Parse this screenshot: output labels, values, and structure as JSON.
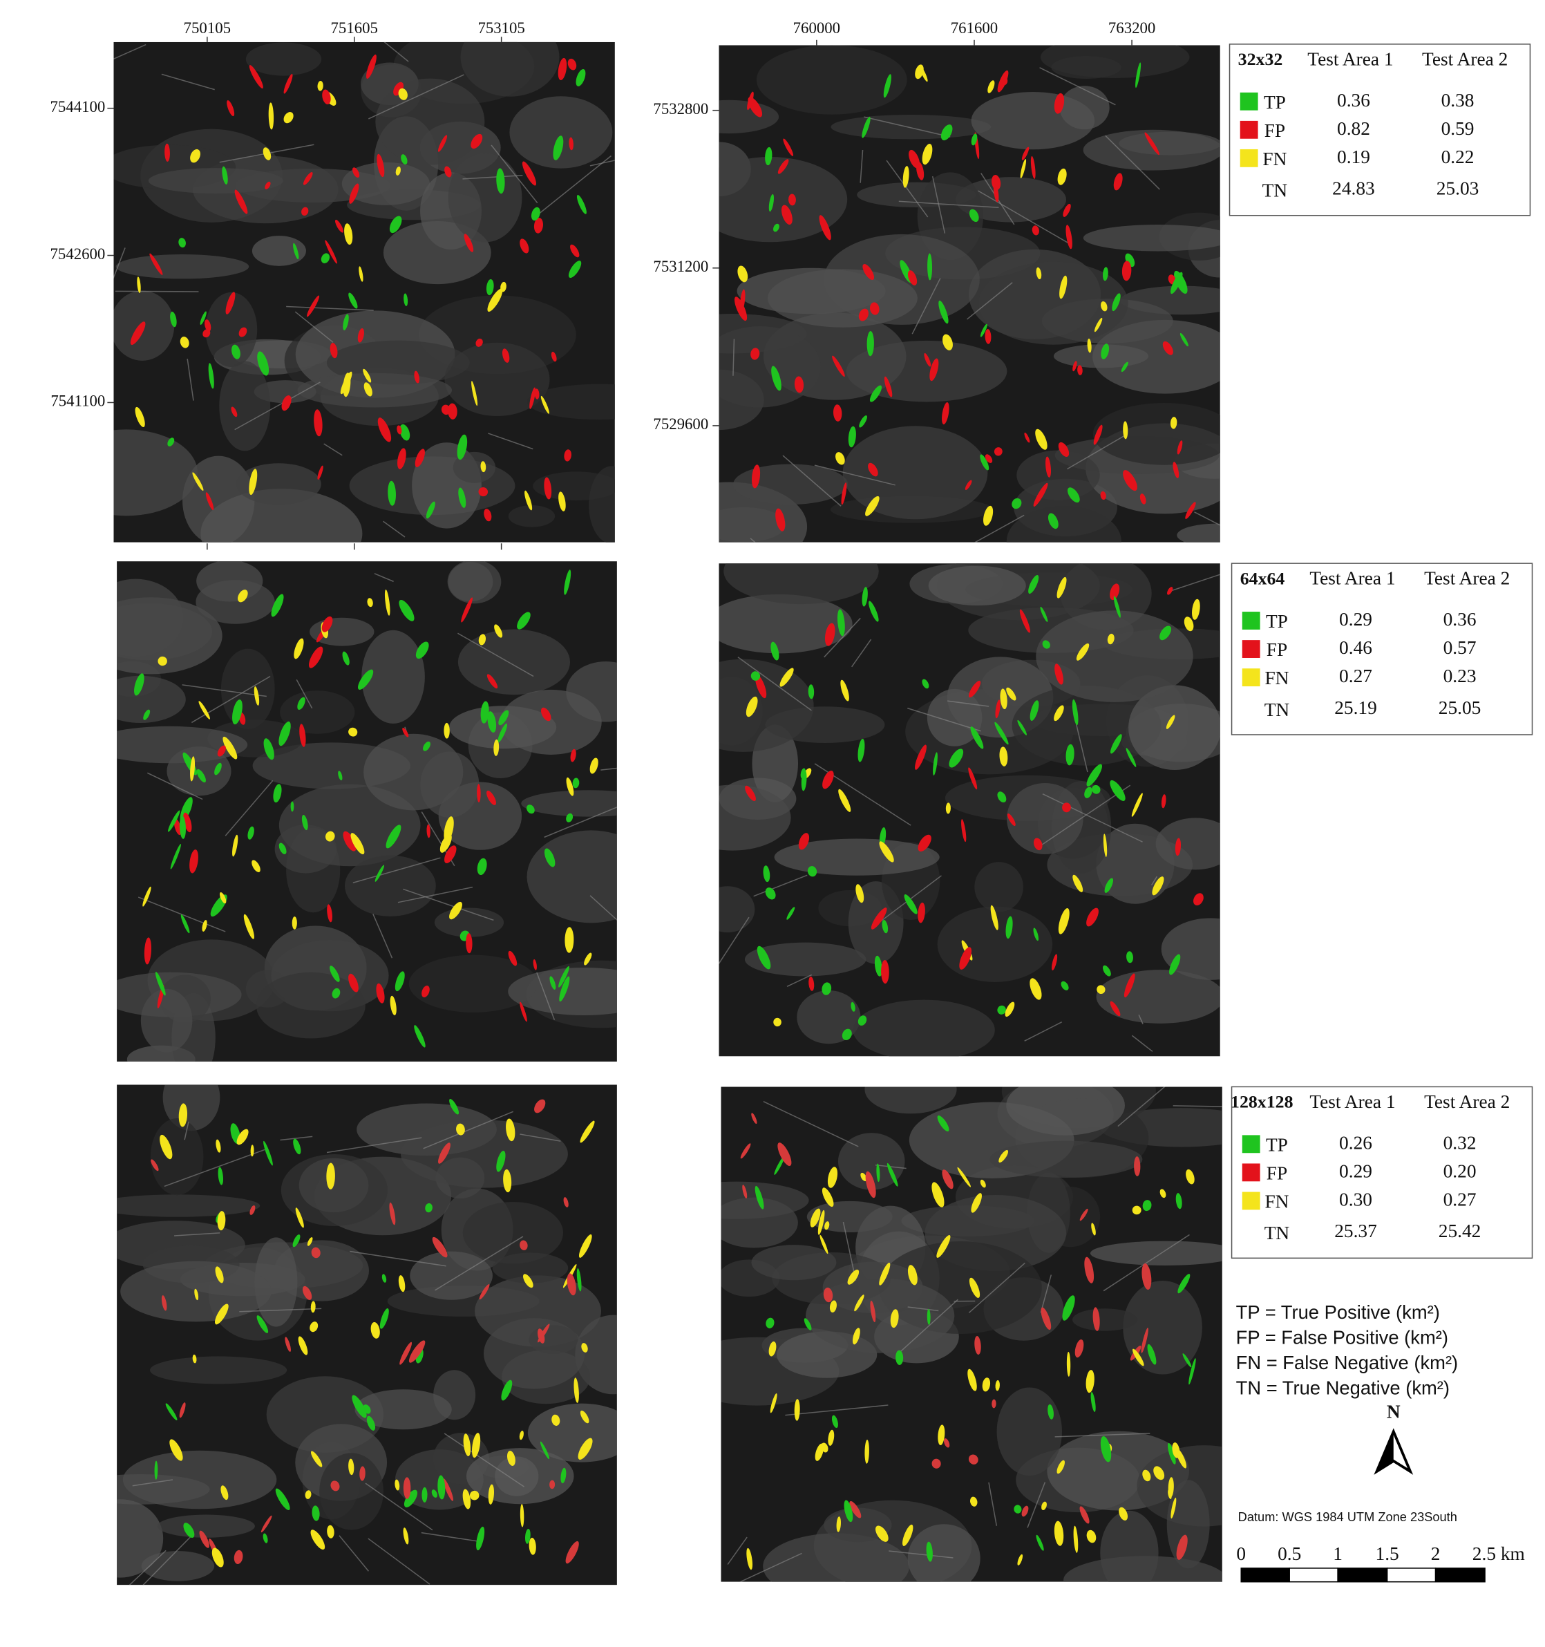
{
  "maps": [
    {
      "x_ticks": [
        750105,
        751605,
        753105
      ],
      "y_ticks": [
        7544100,
        7542600,
        7541100
      ]
    },
    {
      "x_ticks": [
        760000,
        761600,
        763200
      ],
      "y_ticks": [
        7532800,
        7531200,
        7529600
      ]
    }
  ],
  "tables": [
    {
      "title": "32x32",
      "columns": [
        "Test Area 1",
        "Test Area 2"
      ],
      "rows": [
        {
          "label": "TP",
          "color": "#1fc41f",
          "values": [
            "0.36",
            "0.38"
          ]
        },
        {
          "label": "FP",
          "color": "#e3121b",
          "values": [
            "0.82",
            "0.59"
          ]
        },
        {
          "label": "FN",
          "color": "#f4e41c",
          "values": [
            "0.19",
            "0.22"
          ]
        },
        {
          "label": "TN",
          "values": [
            "24.83",
            "25.03"
          ]
        }
      ]
    },
    {
      "title": "64x64",
      "columns": [
        "Test Area 1",
        "Test Area 2"
      ],
      "rows": [
        {
          "label": "TP",
          "color": "#1fc41f",
          "values": [
            "0.29",
            "0.36"
          ]
        },
        {
          "label": "FP",
          "color": "#e3121b",
          "values": [
            "0.46",
            "0.57"
          ]
        },
        {
          "label": "FN",
          "color": "#f4e41c",
          "values": [
            "0.27",
            "0.23"
          ]
        },
        {
          "label": "TN",
          "values": [
            "25.19",
            "25.05"
          ]
        }
      ]
    },
    {
      "title": "128x128",
      "columns": [
        "Test Area 1",
        "Test Area 2"
      ],
      "rows": [
        {
          "label": "TP",
          "color": "#1fc41f",
          "values": [
            "0.26",
            "0.32"
          ]
        },
        {
          "label": "FP",
          "color": "#e3121b",
          "values": [
            "0.29",
            "0.20"
          ]
        },
        {
          "label": "FN",
          "color": "#f4e41c",
          "values": [
            "0.30",
            "0.27"
          ]
        },
        {
          "label": "TN",
          "values": [
            "25.37",
            "25.42"
          ]
        }
      ]
    }
  ],
  "definitions": [
    "TP = True Positive (km²)",
    "FP = False Positive (km²)",
    "FN = False Negative (km²)",
    "TN = True Negative (km²)"
  ],
  "north": "N",
  "datum": "Datum: WGS 1984 UTM Zone 23South",
  "scale_labels": [
    "0",
    "0.5",
    "1",
    "1.5",
    "2",
    "2.5 km"
  ]
}
